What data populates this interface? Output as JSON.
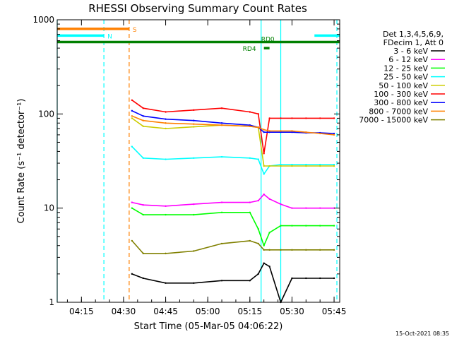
{
  "chart_data": {
    "type": "line",
    "title": "RHESSI Observing Summary Count Rates",
    "xlabel": "Start Time (05-Mar-05 04:06:22)",
    "ylabel": "Count Rate (s⁻¹ detector⁻¹)",
    "yscale": "log",
    "ylim": [
      1,
      1000
    ],
    "xlim": [
      "04:06:22",
      "05:47:00"
    ],
    "x_ticks": [
      "04:15",
      "04:30",
      "04:45",
      "05:00",
      "05:15",
      "05:30",
      "05:45"
    ],
    "y_ticks": [
      1,
      10,
      100,
      1000
    ],
    "y_tick_labels": [
      "1",
      "10",
      "100",
      "1000"
    ],
    "legend": {
      "position": "right",
      "header": [
        "Det 1,3,4,5,6,9,",
        "FDecim 1, Att 0"
      ]
    },
    "series": [
      {
        "name": "3 - 6 keV",
        "color": "#000000",
        "x": [
          "04:33",
          "04:37",
          "04:45",
          "04:55",
          "05:05",
          "05:15",
          "05:18",
          "05:20",
          "05:22",
          "05:26",
          "05:30",
          "05:35",
          "05:40",
          "05:45"
        ],
        "values": [
          2,
          1.8,
          1.6,
          1.6,
          1.7,
          1.7,
          2,
          2.6,
          2.4,
          1,
          1.8,
          1.8,
          1.8,
          1.8
        ]
      },
      {
        "name": "6 - 12 keV",
        "color": "#ff00ff",
        "x": [
          "04:33",
          "04:37",
          "04:45",
          "04:55",
          "05:05",
          "05:15",
          "05:18",
          "05:20",
          "05:22",
          "05:26",
          "05:30",
          "05:35",
          "05:40",
          "05:45"
        ],
        "values": [
          11.5,
          10.8,
          10.5,
          11,
          11.5,
          11.5,
          12,
          14,
          12.5,
          11,
          10,
          10,
          10,
          10
        ]
      },
      {
        "name": "12 - 25 keV",
        "color": "#00ff00",
        "x": [
          "04:33",
          "04:37",
          "04:45",
          "04:55",
          "05:05",
          "05:15",
          "05:18",
          "05:20",
          "05:22",
          "05:26",
          "05:30",
          "05:35",
          "05:40",
          "05:45"
        ],
        "values": [
          10,
          8.5,
          8.5,
          8.5,
          9,
          9,
          6,
          4,
          5.5,
          6.5,
          6.5,
          6.5,
          6.5,
          6.5
        ]
      },
      {
        "name": "25 - 50 keV",
        "color": "#00ffff",
        "x": [
          "04:33",
          "04:37",
          "04:45",
          "04:55",
          "05:05",
          "05:15",
          "05:18",
          "05:20",
          "05:22",
          "05:26",
          "05:30",
          "05:35",
          "05:40",
          "05:45"
        ],
        "values": [
          45,
          34,
          33,
          34,
          35,
          34,
          33,
          23,
          28,
          29,
          29,
          29,
          29,
          29
        ]
      },
      {
        "name": "50 - 100 keV",
        "color": "#cccc00",
        "x": [
          "04:33",
          "04:37",
          "04:45",
          "04:55",
          "05:05",
          "05:15",
          "05:18",
          "05:20",
          "05:22",
          "05:26",
          "05:30",
          "05:35",
          "05:40",
          "05:45"
        ],
        "values": [
          90,
          74,
          70,
          73,
          76,
          74,
          72,
          28,
          28,
          28,
          28,
          28,
          28,
          28
        ]
      },
      {
        "name": "100 - 300 keV",
        "color": "#ff0000",
        "x": [
          "04:33",
          "04:37",
          "04:45",
          "04:55",
          "05:05",
          "05:15",
          "05:18",
          "05:20",
          "05:22",
          "05:26",
          "05:30",
          "05:35",
          "05:40",
          "05:45"
        ],
        "values": [
          140,
          115,
          105,
          110,
          115,
          105,
          100,
          38,
          90,
          90,
          90,
          90,
          90,
          90
        ]
      },
      {
        "name": "300 - 800 keV",
        "color": "#0000ff",
        "x": [
          "04:33",
          "04:37",
          "04:45",
          "04:55",
          "05:05",
          "05:15",
          "05:18",
          "05:20",
          "05:22",
          "05:26",
          "05:30",
          "05:35",
          "05:40",
          "05:45"
        ],
        "values": [
          108,
          95,
          88,
          85,
          80,
          76,
          72,
          64,
          64,
          64,
          64,
          63,
          63,
          62
        ]
      },
      {
        "name": "800 - 7000 keV",
        "color": "#ff8000",
        "x": [
          "04:33",
          "04:37",
          "04:45",
          "04:55",
          "05:05",
          "05:15",
          "05:18",
          "05:20",
          "05:22",
          "05:26",
          "05:30",
          "05:35",
          "05:40",
          "05:45"
        ],
        "values": [
          95,
          85,
          80,
          78,
          76,
          74,
          72,
          68,
          66,
          66,
          66,
          64,
          62,
          60
        ]
      },
      {
        "name": "7000 - 15000 keV",
        "color": "#808000",
        "x": [
          "04:33",
          "04:37",
          "04:45",
          "04:55",
          "05:05",
          "05:15",
          "05:18",
          "05:20",
          "05:22",
          "05:26",
          "05:30",
          "05:35",
          "05:40",
          "05:45"
        ],
        "values": [
          4.5,
          3.3,
          3.3,
          3.5,
          4.2,
          4.5,
          4.2,
          3.6,
          3.6,
          3.6,
          3.6,
          3.6,
          3.6,
          3.6
        ]
      }
    ],
    "flags": [
      {
        "label": "S",
        "color": "#ff8000",
        "x": [
          "04:06:22",
          "04:32"
        ],
        "y": 800
      },
      {
        "label": "N",
        "color": "#00ffff",
        "x": [
          "04:06:22",
          "04:23"
        ],
        "y": 680
      },
      {
        "label": "",
        "color": "#00ffff",
        "x": [
          "05:38",
          "05:47"
        ],
        "y": 680
      },
      {
        "label": "RD0",
        "color": "#008000",
        "x": [
          "04:06:22",
          "05:47"
        ],
        "y": 580
      },
      {
        "label": "RD4",
        "color": "#008000",
        "x": [
          "05:20",
          "05:22"
        ],
        "y": 500
      }
    ],
    "vertical_markers": [
      {
        "x": "04:06:22",
        "color": "#00ffff",
        "style": "solid"
      },
      {
        "x": "04:23",
        "color": "#00ffff",
        "style": "dashed"
      },
      {
        "x": "04:32",
        "color": "#ff8000",
        "style": "dashed"
      },
      {
        "x": "05:19",
        "color": "#00ffff",
        "style": "solid"
      },
      {
        "x": "05:26",
        "color": "#00ffff",
        "style": "solid"
      },
      {
        "x": "05:46",
        "color": "#00ffff",
        "style": "dashed"
      }
    ],
    "grid": false,
    "footer": "15-Oct-2021 08:35"
  }
}
